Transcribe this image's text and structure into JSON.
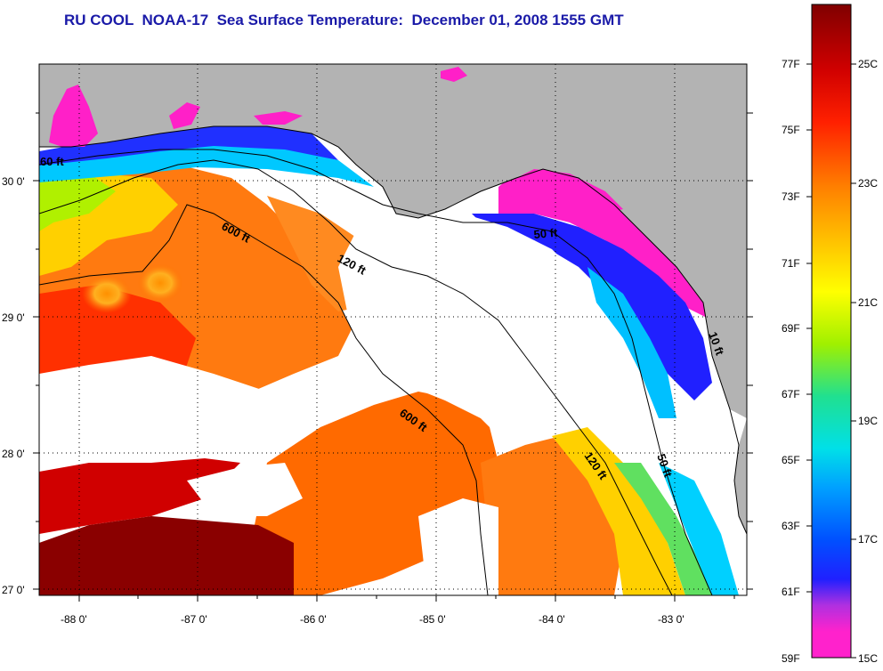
{
  "title": "RU COOL  NOAA-17  Sea Surface Temperature:  December 01, 2008 1555 GMT",
  "map": {
    "lon_labels": [
      "-88 0'",
      "-87 0'",
      "-86 0'",
      "-85 0'",
      "-84 0'",
      "-83 0'"
    ],
    "lat_labels": [
      "30 0'",
      "29 0'",
      "28 0'",
      "27 0'"
    ],
    "isobaths": {
      "left_60": "60 ft",
      "outer_600": "600 ft",
      "mid_120": "120 ft",
      "bigbend_50": "50 ft",
      "south_600": "600 ft",
      "south_120": "120 ft",
      "south_50": "50 ft",
      "east_10": "10 ft"
    },
    "colors": {
      "land": "#b3b3b3",
      "cloud": "#ffffff"
    }
  },
  "colorbar": {
    "f_labels": [
      "77F",
      "75F",
      "73F",
      "71F",
      "69F",
      "67F",
      "65F",
      "63F",
      "61F",
      "59F"
    ],
    "c_labels": [
      "25C",
      "23C",
      "21C",
      "19C",
      "17C",
      "15C"
    ],
    "stops": [
      "#ff22cc",
      "#b030e0",
      "#3030ff",
      "#0066ff",
      "#00b0ff",
      "#00e8e0",
      "#20e080",
      "#a0f000",
      "#ffff00",
      "#ffc000",
      "#ff8000",
      "#ff3000",
      "#e00000",
      "#800000"
    ]
  }
}
